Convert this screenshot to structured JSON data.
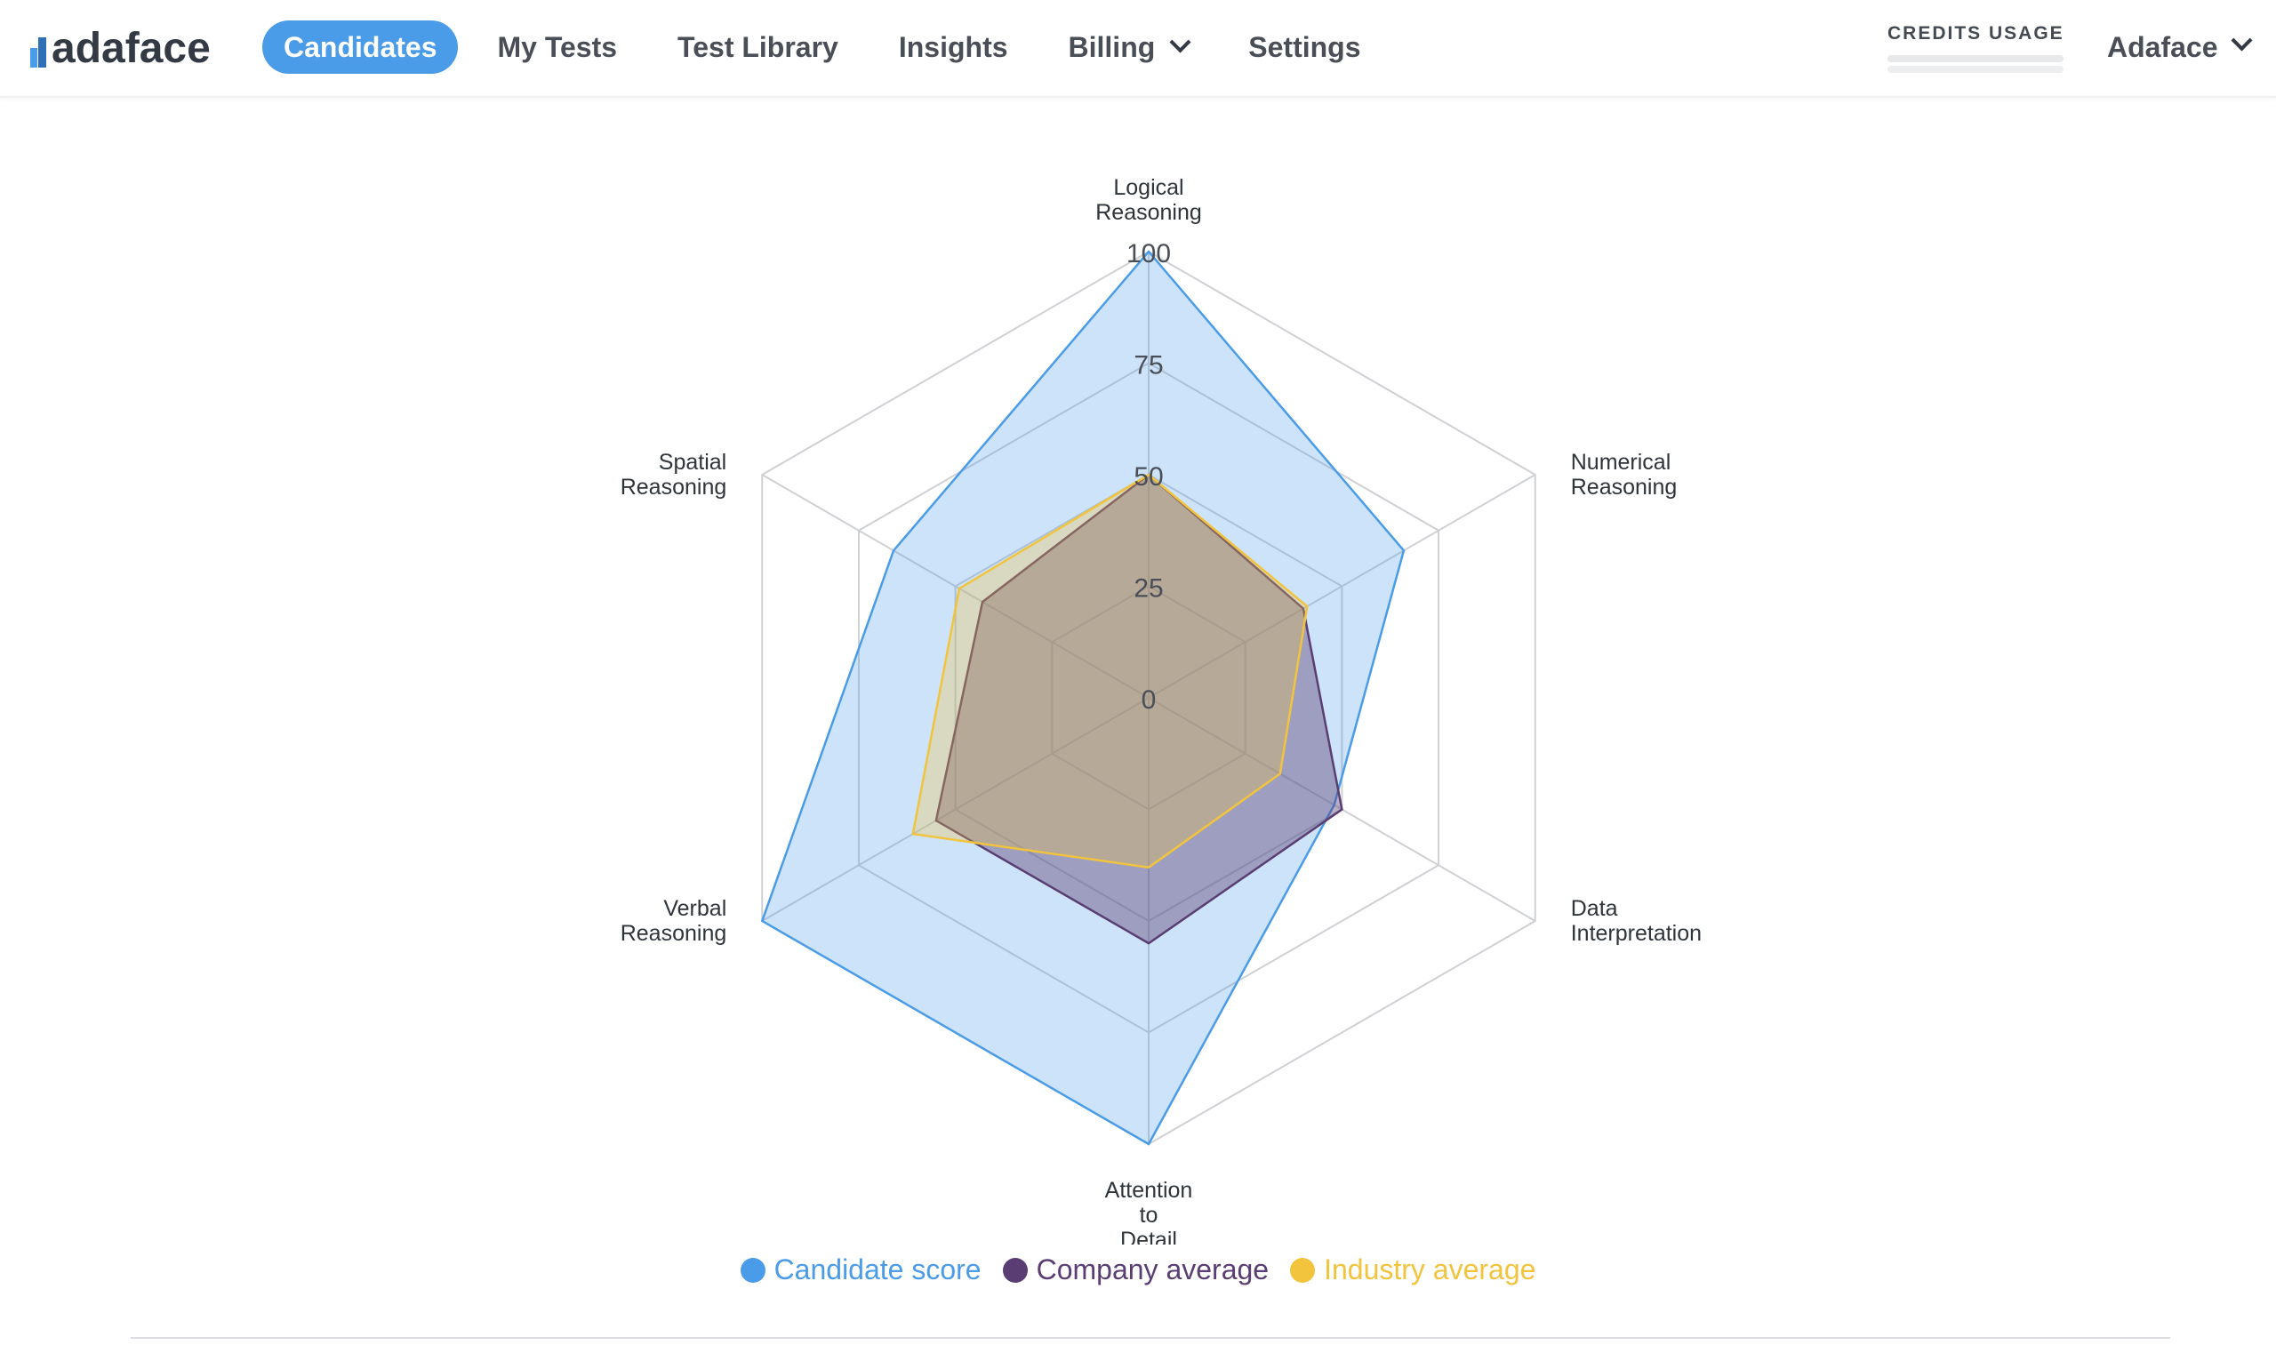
{
  "app": {
    "logo_text": "adaface"
  },
  "nav": {
    "items": [
      {
        "label": "Candidates",
        "active": true
      },
      {
        "label": "My Tests"
      },
      {
        "label": "Test Library"
      },
      {
        "label": "Insights"
      },
      {
        "label": "Billing",
        "has_dropdown": true
      },
      {
        "label": "Settings"
      }
    ]
  },
  "credits": {
    "label": "CREDITS USAGE"
  },
  "account": {
    "name": "Adaface"
  },
  "colors": {
    "primary": "#4a9be8",
    "company": "#5a3e73",
    "industry": "#f2c43d"
  },
  "chart_data": {
    "type": "radar",
    "axes": [
      [
        "Logical",
        "Reasoning"
      ],
      [
        "Numerical",
        "Reasoning"
      ],
      [
        "Data",
        "Interpretation"
      ],
      [
        "Attention",
        "to",
        "Detail"
      ],
      [
        "Verbal",
        "Reasoning"
      ],
      [
        "Spatial",
        "Reasoning"
      ]
    ],
    "scale": {
      "min": 0,
      "max": 100,
      "ticks": [
        0,
        25,
        50,
        75,
        100
      ]
    },
    "series": [
      {
        "name": "Candidate score",
        "color": "#4a9be8",
        "values": [
          100,
          66,
          48,
          100,
          100,
          66
        ]
      },
      {
        "name": "Company average",
        "color": "#5a3e73",
        "values": [
          50,
          40,
          50,
          55,
          55,
          43
        ]
      },
      {
        "name": "Industry average",
        "color": "#f2c43d",
        "values": [
          50,
          41,
          34,
          38,
          61,
          49
        ]
      }
    ]
  }
}
